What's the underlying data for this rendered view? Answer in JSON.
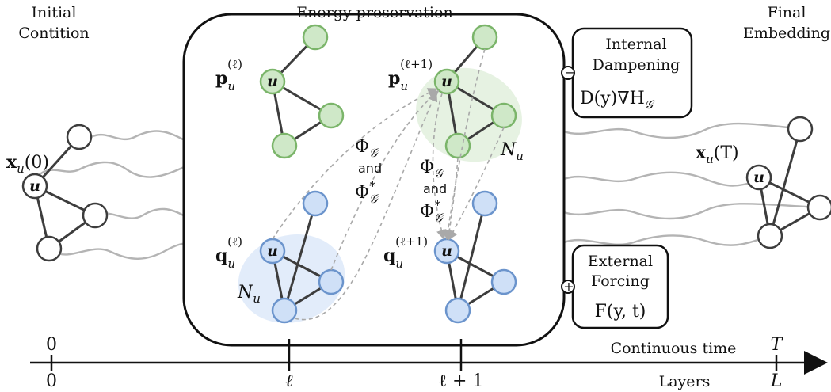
{
  "title": "Energy preservation",
  "left_caption": [
    "Initial",
    "Contition"
  ],
  "right_caption": [
    "Final",
    "Embedding"
  ],
  "initial_state": {
    "symbol": "x",
    "sub": "u",
    "arg": "(0)"
  },
  "final_state": {
    "symbol": "x",
    "sub": "u",
    "arg": "(T)"
  },
  "node_label": "u",
  "p_layer_l": {
    "symbol": "p",
    "sub": "u",
    "sup": "(ℓ)"
  },
  "p_layer_l1": {
    "symbol": "p",
    "sub": "u",
    "sup": "(ℓ+1)"
  },
  "q_layer_l": {
    "symbol": "q",
    "sub": "u",
    "sup": "(ℓ)"
  },
  "q_layer_l1": {
    "symbol": "q",
    "sub": "u",
    "sup": "(ℓ+1)"
  },
  "neighborhood": {
    "symbol": "N",
    "sub": "u"
  },
  "operator": {
    "phi": "Φ",
    "sub": "𝒢",
    "connector": "and",
    "phi_star": "Φ",
    "star": "*"
  },
  "dampening": {
    "line1": "Internal",
    "line2": "Dampening",
    "sign": "−",
    "formula_main": "D(y)∇H",
    "formula_sub": "𝒢"
  },
  "forcing": {
    "line1": "External",
    "line2": "Forcing",
    "sign": "+",
    "formula": "F(y, t)"
  },
  "axis": {
    "time_label": "Continuous time",
    "layer_label": "Layers",
    "ticks_top": [
      "0",
      "T"
    ],
    "ticks_bottom": [
      "0",
      "ℓ",
      "ℓ + 1",
      "L"
    ]
  },
  "colors": {
    "green_fill": "#cfe8c8",
    "green_stroke": "#7bb56a",
    "blue_fill": "#cfe0f7",
    "blue_stroke": "#6b94cc",
    "edge": "#3d3d3d",
    "wave": "#b4b4b4"
  }
}
